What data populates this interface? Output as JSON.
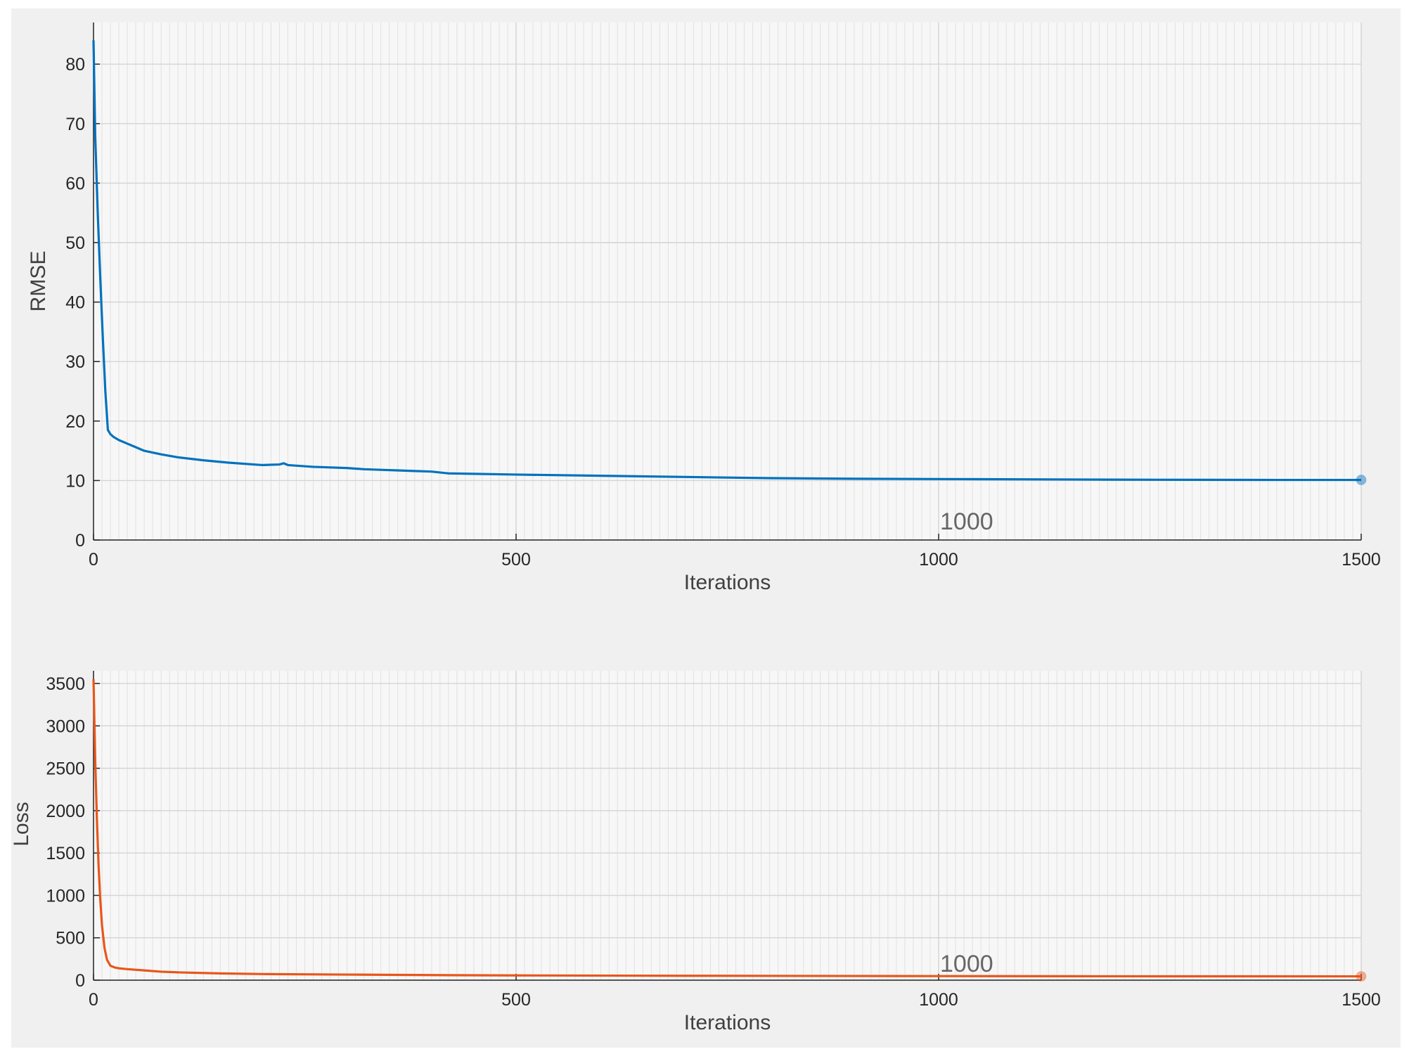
{
  "chart_data": [
    {
      "type": "line",
      "ylabel": "RMSE",
      "xlabel": "Iterations",
      "xlim": [
        0,
        1500
      ],
      "ylim": [
        0,
        87
      ],
      "xticks": [
        "0",
        "500",
        "1000",
        "1500"
      ],
      "yticks": [
        "0",
        "10",
        "20",
        "30",
        "40",
        "50",
        "60",
        "70",
        "80"
      ],
      "grid": "on",
      "minor_grid_x": "on",
      "annotation": {
        "text": "1000",
        "x": 1000,
        "y": 1.8
      },
      "series": [
        {
          "color": "#0072bd",
          "x": [
            0,
            2,
            5,
            8,
            11,
            14,
            17,
            20,
            24,
            30,
            40,
            50,
            60,
            80,
            100,
            130,
            160,
            200,
            220,
            225,
            230,
            260,
            300,
            320,
            340,
            360,
            380,
            400,
            420,
            500,
            600,
            700,
            800,
            900,
            1000,
            1100,
            1200,
            1300,
            1400,
            1500
          ],
          "y": [
            84,
            68,
            55,
            44,
            34,
            25,
            18.5,
            17.8,
            17.3,
            16.8,
            16.2,
            15.6,
            15.0,
            14.4,
            13.9,
            13.4,
            13.0,
            12.6,
            12.7,
            12.9,
            12.6,
            12.3,
            12.1,
            11.9,
            11.8,
            11.7,
            11.6,
            11.5,
            11.2,
            11.0,
            10.8,
            10.6,
            10.4,
            10.3,
            10.25,
            10.2,
            10.15,
            10.12,
            10.1,
            10.1
          ]
        }
      ],
      "end_marker": {
        "x": 1500,
        "y": 10.1
      }
    },
    {
      "type": "line",
      "ylabel": "Loss",
      "xlabel": "Iterations",
      "xlim": [
        0,
        1500
      ],
      "ylim": [
        0,
        3650
      ],
      "xticks": [
        "0",
        "500",
        "1000",
        "1500"
      ],
      "yticks": [
        "0",
        "500",
        "1000",
        "1500",
        "2000",
        "2500",
        "3000",
        "3500"
      ],
      "grid": "on",
      "minor_grid_x": "on",
      "annotation": {
        "text": "1000",
        "x": 1000,
        "y": 100
      },
      "series": [
        {
          "color": "#e8561a",
          "x": [
            0,
            2,
            4,
            6,
            8,
            10,
            13,
            16,
            20,
            25,
            30,
            40,
            60,
            80,
            100,
            150,
            200,
            300,
            400,
            500,
            700,
            1000,
            1200,
            1500
          ],
          "y": [
            3550,
            2600,
            1900,
            1350,
            950,
            650,
            380,
            240,
            170,
            150,
            140,
            130,
            115,
            100,
            92,
            80,
            72,
            66,
            60,
            56,
            52,
            48,
            46,
            45
          ]
        }
      ],
      "end_marker": {
        "x": 1500,
        "y": 45
      }
    }
  ]
}
